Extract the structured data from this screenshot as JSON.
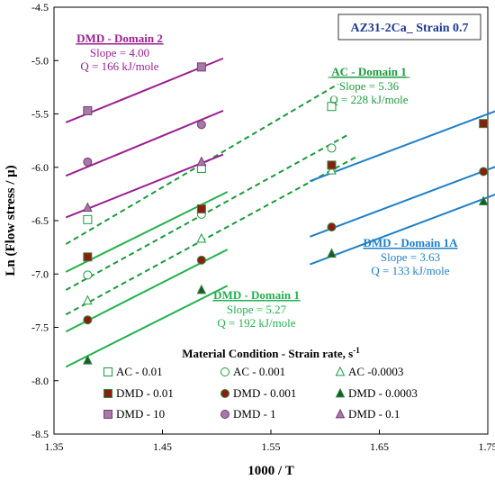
{
  "chart_data": {
    "type": "scatter",
    "title": "AZ31-2Ca_ Strain 0.7",
    "xlabel": "1000 / T",
    "ylabel": "Ln (Flow stress / μ)",
    "xlim": [
      1.35,
      1.75
    ],
    "ylim": [
      -8.5,
      -4.5
    ],
    "xticks": [
      "1.35",
      "1.45",
      "1.55",
      "1.65",
      "1.75"
    ],
    "yticks": [
      "-4.5",
      "-5.0",
      "-5.5",
      "-6.0",
      "-6.5",
      "-7.0",
      "-7.5",
      "-8.0",
      "-8.5"
    ],
    "series": [
      {
        "name": "AC - 0.01",
        "color": "#1a9a3e",
        "marker": "square",
        "fill": false,
        "x": [
          1.381,
          1.486,
          1.606
        ],
        "y": [
          -6.49,
          -6.01,
          -5.43
        ]
      },
      {
        "name": "AC - 0.001",
        "color": "#1a9a3e",
        "marker": "circle",
        "fill": false,
        "x": [
          1.381,
          1.486,
          1.606
        ],
        "y": [
          -7.01,
          -6.44,
          -5.82
        ]
      },
      {
        "name": "AC -0.0003",
        "color": "#1a9a3e",
        "marker": "triangle",
        "fill": false,
        "x": [
          1.381,
          1.486,
          1.606
        ],
        "y": [
          -7.25,
          -6.67,
          -6.03
        ]
      },
      {
        "name": "DMD - 0.01",
        "color": "#8b1e0e",
        "edge": "#2e8b3a",
        "marker": "square",
        "fill": true,
        "x": [
          1.381,
          1.486,
          1.606,
          1.746
        ],
        "y": [
          -6.84,
          -6.39,
          -5.98,
          -5.59
        ]
      },
      {
        "name": "DMD - 0.001",
        "color": "#8b1e0e",
        "edge": "#2e8b3a",
        "marker": "circle",
        "fill": true,
        "x": [
          1.381,
          1.486,
          1.606,
          1.746
        ],
        "y": [
          -7.43,
          -6.87,
          -6.56,
          -6.04
        ]
      },
      {
        "name": "DMD - 0.0003",
        "color": "#1e5631",
        "edge": "#2e8b3a",
        "marker": "triangle",
        "fill": true,
        "x": [
          1.381,
          1.486,
          1.606,
          1.746
        ],
        "y": [
          -7.81,
          -7.15,
          -6.81,
          -6.32
        ]
      },
      {
        "name": "DMD - 10",
        "color": "#a57aa5",
        "edge": "#7a3a7a",
        "marker": "square",
        "fill": true,
        "x": [
          1.381,
          1.486
        ],
        "y": [
          -5.47,
          -5.06
        ]
      },
      {
        "name": "DMD - 1",
        "color": "#a57aa5",
        "edge": "#7a3a7a",
        "marker": "circle",
        "fill": true,
        "x": [
          1.381,
          1.486
        ],
        "y": [
          -5.95,
          -5.6
        ]
      },
      {
        "name": "DMD - 0.1",
        "color": "#a57aa5",
        "edge": "#7a3a7a",
        "marker": "triangle",
        "fill": true,
        "x": [
          1.381,
          1.486
        ],
        "y": [
          -6.38,
          -5.95
        ]
      }
    ],
    "fit_lines": [
      {
        "group": "ac",
        "color": "#1a9a3e",
        "dashed": true,
        "x": [
          1.361,
          1.612
        ],
        "y": [
          -6.72,
          -5.22
        ]
      },
      {
        "group": "ac",
        "color": "#1a9a3e",
        "dashed": true,
        "x": [
          1.361,
          1.622
        ],
        "y": [
          -7.15,
          -5.69
        ]
      },
      {
        "group": "ac",
        "color": "#1a9a3e",
        "dashed": true,
        "x": [
          1.361,
          1.631
        ],
        "y": [
          -7.38,
          -5.89
        ]
      },
      {
        "group": "dmd1",
        "color": "#22b14c",
        "dashed": false,
        "x": [
          1.361,
          1.51
        ],
        "y": [
          -6.98,
          -6.23
        ]
      },
      {
        "group": "dmd1",
        "color": "#22b14c",
        "dashed": false,
        "x": [
          1.361,
          1.51
        ],
        "y": [
          -7.54,
          -6.77
        ]
      },
      {
        "group": "dmd1",
        "color": "#22b14c",
        "dashed": false,
        "x": [
          1.361,
          1.51
        ],
        "y": [
          -7.87,
          -7.11
        ]
      },
      {
        "group": "dmd2",
        "color": "#9c1f91",
        "dashed": false,
        "x": [
          1.361,
          1.506
        ],
        "y": [
          -5.58,
          -4.98
        ]
      },
      {
        "group": "dmd2",
        "color": "#9c1f91",
        "dashed": false,
        "x": [
          1.361,
          1.506
        ],
        "y": [
          -6.08,
          -5.47
        ]
      },
      {
        "group": "dmd2",
        "color": "#9c1f91",
        "dashed": false,
        "x": [
          1.361,
          1.506
        ],
        "y": [
          -6.47,
          -5.88
        ]
      },
      {
        "group": "dmd1a",
        "color": "#1e7fc8",
        "dashed": false,
        "x": [
          1.586,
          1.766
        ],
        "y": [
          -6.13,
          -5.44
        ]
      },
      {
        "group": "dmd1a",
        "color": "#1e7fc8",
        "dashed": false,
        "x": [
          1.586,
          1.766
        ],
        "y": [
          -6.65,
          -5.96
        ]
      },
      {
        "group": "dmd1a",
        "color": "#1e7fc8",
        "dashed": false,
        "x": [
          1.586,
          1.766
        ],
        "y": [
          -6.91,
          -6.22
        ]
      }
    ],
    "annotations": [
      {
        "id": "dmd2",
        "color": "#9c1f91",
        "title": "DMD - Domain 2",
        "slope": "Slope = 4.00",
        "q": "Q = 166 kJ/mole"
      },
      {
        "id": "ac1",
        "color": "#1a9a3e",
        "title": "AC - Domain 1",
        "slope": "Slope = 5.36",
        "q": "Q = 228 kJ/mole"
      },
      {
        "id": "dmd1",
        "color": "#22b14c",
        "title": "DMD - Domain 1",
        "slope": "Slope = 5.27",
        "q": "Q = 192 kJ/mole"
      },
      {
        "id": "dmd1a",
        "color": "#1e7fc8",
        "title": "DMD - Domain 1A",
        "slope": "Slope = 3.63",
        "q": "Q = 133 kJ/mole"
      }
    ],
    "legend": {
      "title": "Material Condition - Strain rate, s",
      "title_sup": "-1",
      "placement": "bottom-center",
      "columns": 3
    },
    "title_box_color": "#1f3a93",
    "grid": false
  }
}
